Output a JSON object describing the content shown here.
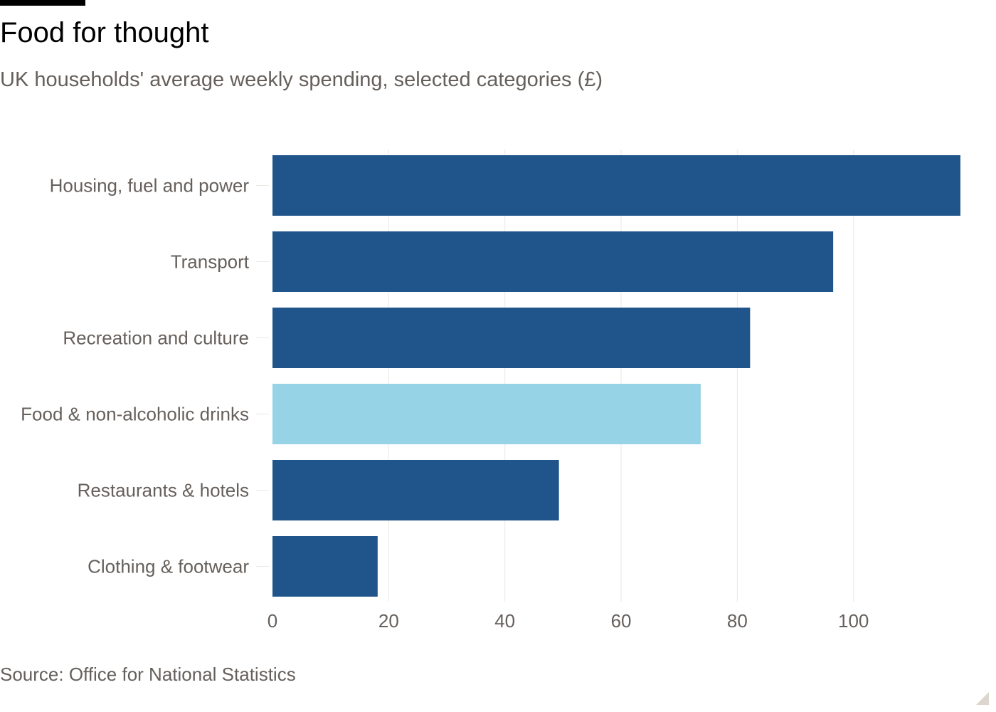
{
  "chart_data": {
    "type": "bar",
    "orientation": "horizontal",
    "title": "Food for thought",
    "subtitle": "UK households' average weekly spending, selected categories (£)",
    "source": "Source: Office for National Statistics",
    "categories": [
      "Housing, fuel and power",
      "Transport",
      "Recreation and culture",
      "Food & non-alcoholic drinks",
      "Restaurants & hotels",
      "Clothing & footwear"
    ],
    "values": [
      118.4,
      96.5,
      82.2,
      73.7,
      49.3,
      18.1
    ],
    "highlight": "Food & non-alcoholic drinks",
    "xlim": [
      0,
      118.4
    ],
    "xticks": [
      0,
      20,
      40,
      60,
      80,
      100
    ],
    "grid": "vertical",
    "colors": {
      "bar": "#1f558a",
      "highlight": "#96d3e6",
      "grid": "#ece8e4",
      "label": "#66605c"
    }
  }
}
